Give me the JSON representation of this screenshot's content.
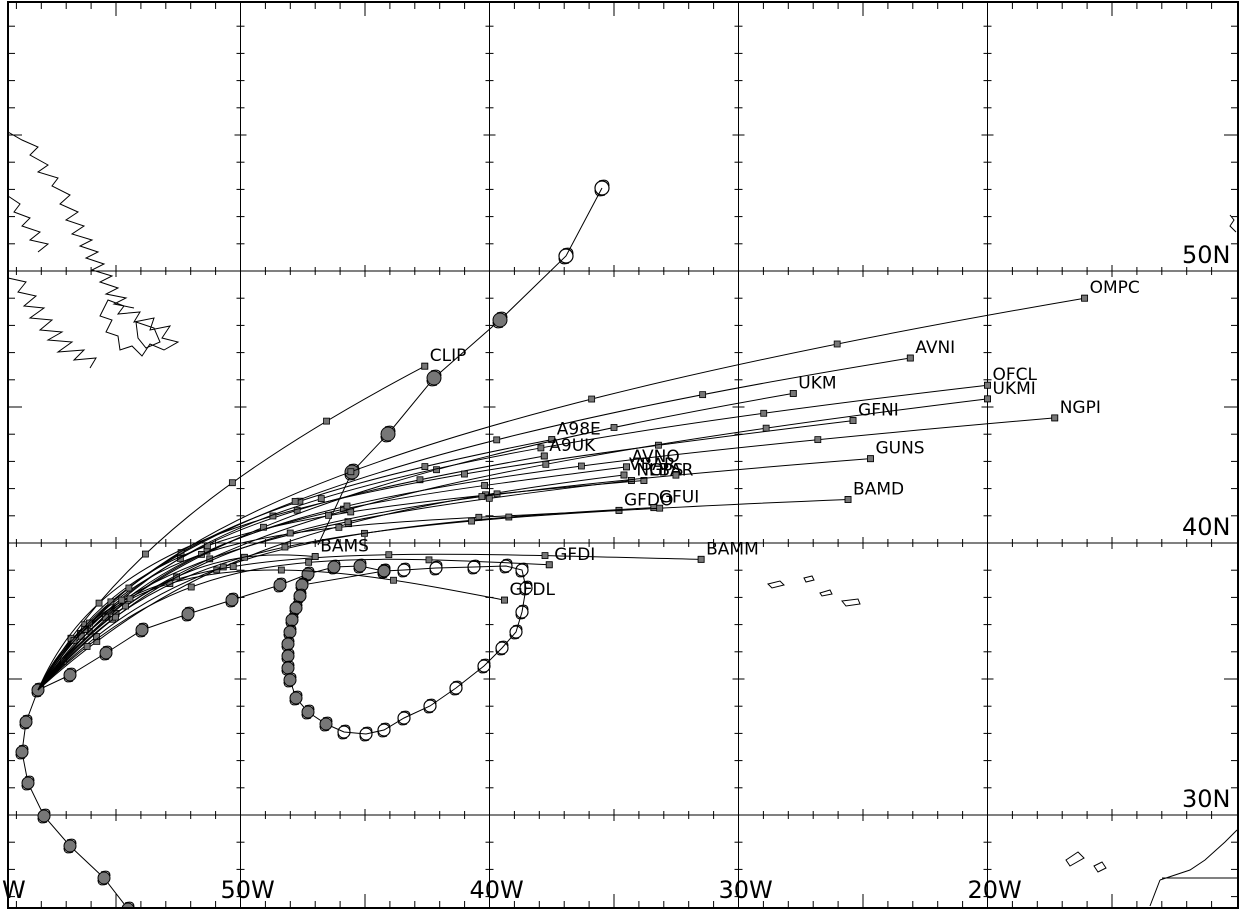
{
  "map": {
    "lon_labels": [
      {
        "lon": -58,
        "text": "W"
      },
      {
        "lon": -50,
        "text": "50W"
      },
      {
        "lon": -40,
        "text": "40W"
      },
      {
        "lon": -30,
        "text": "30W"
      },
      {
        "lon": -20,
        "text": "20W"
      }
    ],
    "lat_labels": [
      {
        "lat": 50,
        "text": "50N"
      },
      {
        "lat": 40,
        "text": "40N"
      },
      {
        "lat": 30,
        "text": "30N"
      }
    ]
  },
  "models": [
    {
      "name": "CLIP",
      "end": [
        -42.6,
        46.5
      ]
    },
    {
      "name": "A98E",
      "end": [
        -37.5,
        43.8
      ]
    },
    {
      "name": "A9UK",
      "end": [
        -37.8,
        43.2
      ]
    },
    {
      "name": "AVNO",
      "end": [
        -34.5,
        42.8
      ]
    },
    {
      "name": "VBAR",
      "end": [
        -34.6,
        42.5
      ]
    },
    {
      "name": "NGPS",
      "end": [
        -34.3,
        42.3
      ]
    },
    {
      "name": "LBAR",
      "end": [
        -33.8,
        42.3
      ]
    },
    {
      "name": "GFDO",
      "end": [
        -34.8,
        41.2
      ]
    },
    {
      "name": "GFUI",
      "end": [
        -33.4,
        41.3
      ]
    },
    {
      "name": "GFDI",
      "end": [
        -37.6,
        39.2
      ]
    },
    {
      "name": "BAMM",
      "end": [
        -31.5,
        39.4
      ]
    },
    {
      "name": "GFDL",
      "end": [
        -39.4,
        37.9
      ]
    },
    {
      "name": "BAMS",
      "end": [
        -47.0,
        39.5
      ]
    },
    {
      "name": "BAMD",
      "end": [
        -25.6,
        41.6
      ]
    },
    {
      "name": "GUNS",
      "end": [
        -24.7,
        43.1
      ]
    },
    {
      "name": "GFNI",
      "end": [
        -25.4,
        44.5
      ]
    },
    {
      "name": "UKM",
      "end": [
        -27.8,
        45.5
      ]
    },
    {
      "name": "UKMI",
      "end": [
        -20.0,
        45.3
      ]
    },
    {
      "name": "OFCL",
      "end": [
        -20.0,
        45.8
      ]
    },
    {
      "name": "NGPI",
      "end": [
        -17.3,
        44.6
      ]
    },
    {
      "name": "AVNI",
      "end": [
        -23.1,
        46.8
      ]
    },
    {
      "name": "OMPC",
      "end": [
        -16.1,
        49.0
      ]
    }
  ]
}
